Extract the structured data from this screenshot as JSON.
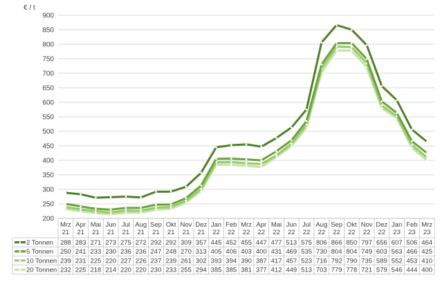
{
  "chart_data": {
    "type": "line",
    "title": "",
    "xlabel": "",
    "ylabel": "€ / t",
    "ylim": [
      200,
      900
    ],
    "yticks": [
      "200",
      "250",
      "300",
      "350",
      "400",
      "450",
      "500",
      "550",
      "600",
      "650",
      "700",
      "750",
      "800",
      "850",
      "900"
    ],
    "grid": "horizontal",
    "legend": "data-table-below",
    "categories": [
      [
        "Mrz",
        "21"
      ],
      [
        "Apr",
        "21"
      ],
      [
        "Mai",
        "21"
      ],
      [
        "Jun",
        "21"
      ],
      [
        "Jul",
        "21"
      ],
      [
        "Aug",
        "21"
      ],
      [
        "Sep",
        "21"
      ],
      [
        "Okt",
        "21"
      ],
      [
        "Nov",
        "21"
      ],
      [
        "Dez",
        "21"
      ],
      [
        "Jan",
        "22"
      ],
      [
        "Feb",
        "22"
      ],
      [
        "Mrz",
        "22"
      ],
      [
        "Apr",
        "22"
      ],
      [
        "Mai",
        "22"
      ],
      [
        "Jun",
        "22"
      ],
      [
        "Jul",
        "22"
      ],
      [
        "Aug",
        "22"
      ],
      [
        "Sep",
        "22"
      ],
      [
        "Okt",
        "22"
      ],
      [
        "Nov",
        "22"
      ],
      [
        "Dez",
        "22"
      ],
      [
        "Jan",
        "23"
      ],
      [
        "Feb",
        "23"
      ],
      [
        "Mrz",
        "23"
      ]
    ],
    "series": [
      {
        "name": "2 Tonnen",
        "color": "#4f7f2a",
        "values": [
          288,
          283,
          271,
          273,
          275,
          272,
          292,
          292,
          309,
          357,
          445,
          452,
          455,
          447,
          477,
          513,
          575,
          806,
          866,
          850,
          797,
          656,
          607,
          506,
          464
        ]
      },
      {
        "name": "5 Tonnen",
        "color": "#6aa23a",
        "values": [
          250,
          241,
          233,
          230,
          236,
          236,
          247,
          248,
          270,
          313,
          405,
          406,
          403,
          400,
          431,
          469,
          535,
          730,
          804,
          804,
          749,
          603,
          563,
          466,
          425
        ]
      },
      {
        "name": "10 Tonnen",
        "color": "#98cb6c",
        "values": [
          239,
          231,
          225,
          220,
          227,
          226,
          237,
          239,
          261,
          302,
          393,
          394,
          390,
          387,
          417,
          457,
          523,
          716,
          792,
          790,
          735,
          589,
          552,
          453,
          410
        ]
      },
      {
        "name": "20 Tonnen",
        "color": "#c5e3a8",
        "values": [
          232,
          225,
          218,
          214,
          220,
          220,
          230,
          233,
          255,
          294,
          385,
          385,
          381,
          377,
          412,
          449,
          513,
          703,
          779,
          778,
          721,
          579,
          546,
          444,
          400
        ]
      }
    ]
  }
}
